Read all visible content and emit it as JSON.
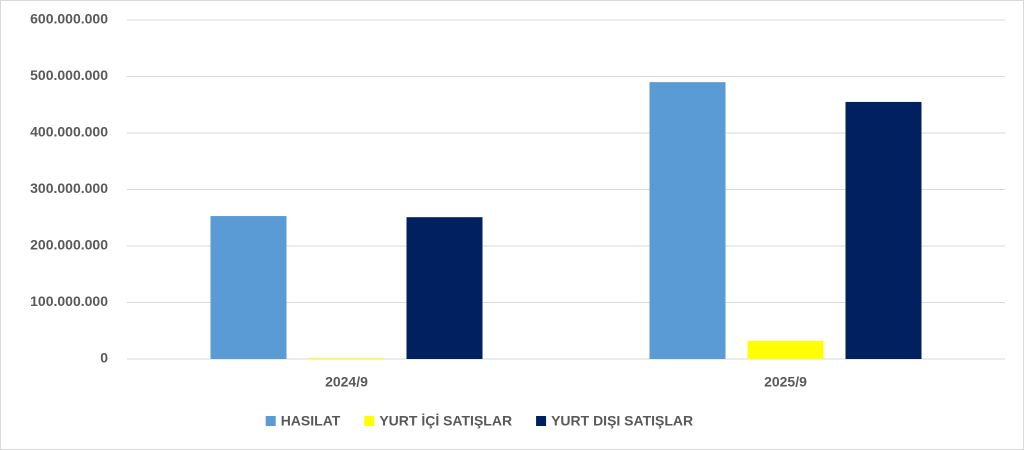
{
  "chart_data": {
    "type": "bar",
    "categories": [
      "2024/9",
      "2025/9"
    ],
    "series": [
      {
        "name": "HASILAT",
        "color": "#5b9bd5",
        "values": [
          253000000,
          490000000
        ]
      },
      {
        "name": "YURT İÇİ SATIŞLAR",
        "color": "#ffff00",
        "values": [
          2000000,
          32000000
        ]
      },
      {
        "name": "YURT DIŞI SATIŞLAR",
        "color": "#002060",
        "values": [
          251000000,
          455000000
        ]
      }
    ],
    "ylim": [
      0,
      600000000
    ],
    "yticks": [
      0,
      {
        "value": 100000000,
        "label": "100.000.000"
      },
      {
        "value": 200000000,
        "label": "200.000.000"
      },
      {
        "value": 300000000,
        "label": "300.000.000"
      },
      {
        "value": 400000000,
        "label": "400.000.000"
      },
      {
        "value": 500000000,
        "label": "500.000.000"
      },
      {
        "value": 600000000,
        "label": "600.000.000"
      }
    ],
    "grid": true,
    "legend": "bottom"
  }
}
